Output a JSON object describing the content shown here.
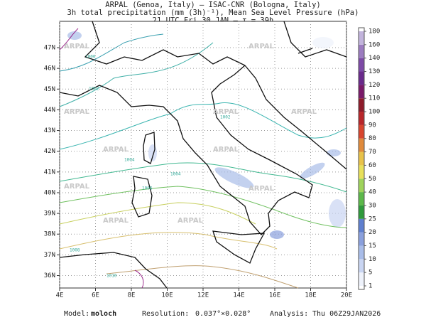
{
  "header": {
    "line1": "ARPAL (Genoa, Italy)  —  ISAC-CNR (Bologna, Italy)",
    "line2": "3h total precipitation (mm (3h)⁻¹), Mean Sea Level Pressure (hPa)",
    "line3": "21 UTC Fri 30 JAN  —  τ = 39h"
  },
  "map": {
    "xlim": [
      4,
      20
    ],
    "ylim": [
      35.4,
      48.27
    ],
    "xticks": [
      {
        "value": 4,
        "label": "4E"
      },
      {
        "value": 6,
        "label": "6E"
      },
      {
        "value": 8,
        "label": "8E"
      },
      {
        "value": 10,
        "label": "10E"
      },
      {
        "value": 12,
        "label": "12E"
      },
      {
        "value": 14,
        "label": "14E"
      },
      {
        "value": 16,
        "label": "16E"
      },
      {
        "value": 18,
        "label": "18E"
      },
      {
        "value": 20,
        "label": "20E"
      }
    ],
    "yticks": [
      {
        "value": 36,
        "label": "36N"
      },
      {
        "value": 37,
        "label": "37N"
      },
      {
        "value": 38,
        "label": "38N"
      },
      {
        "value": 39,
        "label": "39N"
      },
      {
        "value": 40,
        "label": "40N"
      },
      {
        "value": 41,
        "label": "41N"
      },
      {
        "value": 42,
        "label": "42N"
      },
      {
        "value": 43,
        "label": "43N"
      },
      {
        "value": 44,
        "label": "44N"
      },
      {
        "value": 45,
        "label": "45N"
      },
      {
        "value": 46,
        "label": "46N"
      },
      {
        "value": 47,
        "label": "47N"
      }
    ],
    "grid": true,
    "watermark": "ARPAL",
    "isobar_labels": [
      "1000",
      "1002",
      "1004",
      "1006",
      "1008",
      "1010"
    ]
  },
  "colorbar": {
    "levels": [
      1,
      5,
      10,
      15,
      20,
      25,
      30,
      40,
      50,
      60,
      70,
      80,
      90,
      100,
      110,
      120,
      130,
      140,
      160,
      180
    ],
    "colors": [
      "#eef2fb",
      "#c9d5f2",
      "#a9bde9",
      "#8aa0dd",
      "#5f7fcf",
      "#2f9a3c",
      "#5cb84a",
      "#9fd35b",
      "#e8e05a",
      "#e8c24a",
      "#e08a3c",
      "#d8452e",
      "#b8262a",
      "#8e1b2a",
      "#7a1a6a",
      "#6a2a8c",
      "#7d4aa6",
      "#9c7cc0",
      "#c2b4dc"
    ]
  },
  "footer": {
    "model_label": "Model:",
    "model": "moloch",
    "resolution_label": "Resolution:",
    "resolution": "0.037°×0.028°",
    "analysis_label": "Analysis:",
    "analysis": "Thu 06Z29JAN2026"
  }
}
